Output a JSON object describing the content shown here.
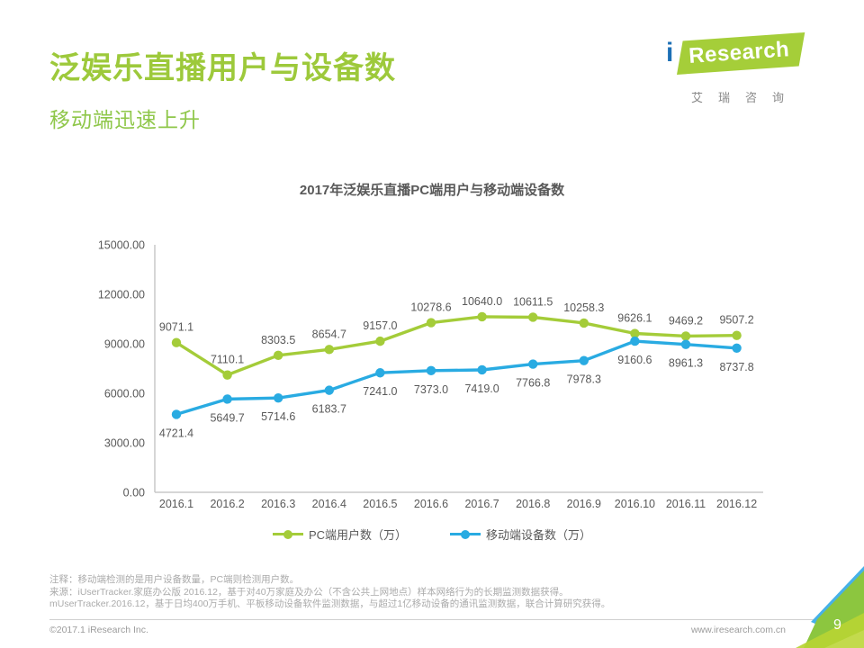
{
  "header": {
    "title": "泛娱乐直播用户与设备数",
    "subtitle": "移动端迅速上升"
  },
  "logo": {
    "i": "i",
    "brand": "Research",
    "chinese": "艾瑞咨询"
  },
  "chart_data": {
    "type": "line",
    "title": "2017年泛娱乐直播PC端用户与移动端设备数",
    "categories": [
      "2016.1",
      "2016.2",
      "2016.3",
      "2016.4",
      "2016.5",
      "2016.6",
      "2016.7",
      "2016.8",
      "2016.9",
      "2016.10",
      "2016.11",
      "2016.12"
    ],
    "series": [
      {
        "name": "PC端用户数（万）",
        "color": "#A4CC39",
        "label_position": "above",
        "values": [
          9071.1,
          7110.1,
          8303.5,
          8654.7,
          9157.0,
          10278.6,
          10640.0,
          10611.5,
          10258.3,
          9626.1,
          9469.2,
          9507.2
        ]
      },
      {
        "name": "移动端设备数（万）",
        "color": "#29ABE2",
        "label_position": "below",
        "values": [
          4721.4,
          5649.7,
          5714.6,
          6183.7,
          7241.0,
          7373.0,
          7419.0,
          7766.8,
          7978.3,
          9160.6,
          8961.3,
          8737.8
        ]
      }
    ],
    "ylim": [
      0,
      15000
    ],
    "ytick_step": 3000,
    "ytick_labels": [
      "15000.00",
      "12000.00",
      "9000.00",
      "6000.00",
      "3000.00",
      "0.00"
    ],
    "grid": false,
    "legend_position": "bottom",
    "axis_color": "#C8C8C8",
    "label_color": "#595959"
  },
  "notes": {
    "line1": "注释：移动端检测的是用户设备数量，PC端则检测用户数。",
    "line2": "来源：iUserTracker.家庭办公版 2016.12，基于对40万家庭及办公（不含公共上网地点）样本网络行为的长期监测数据获得。",
    "line3": "mUserTracker.2016.12，基于日均400万手机、平板移动设备软件监测数据，与超过1亿移动设备的通讯监测数据，联合计算研究获得。"
  },
  "footer": {
    "copyright": "©2017.1 iResearch Inc.",
    "website": "www.iresearch.com.cn",
    "page_number": "9"
  },
  "colors": {
    "title_green": "#9DC93B",
    "subtitle_green": "#8FC74A",
    "brand_green": "#A5CE39",
    "brand_blue": "#1C6FB5",
    "series_green": "#A4CC39",
    "series_blue": "#29ABE2",
    "decor_blue": "#46B1E8",
    "decor_green": "#8CC63F",
    "decor_light_green": "#B7D433",
    "text_gray": "#595959",
    "note_gray": "#ABABAB"
  }
}
